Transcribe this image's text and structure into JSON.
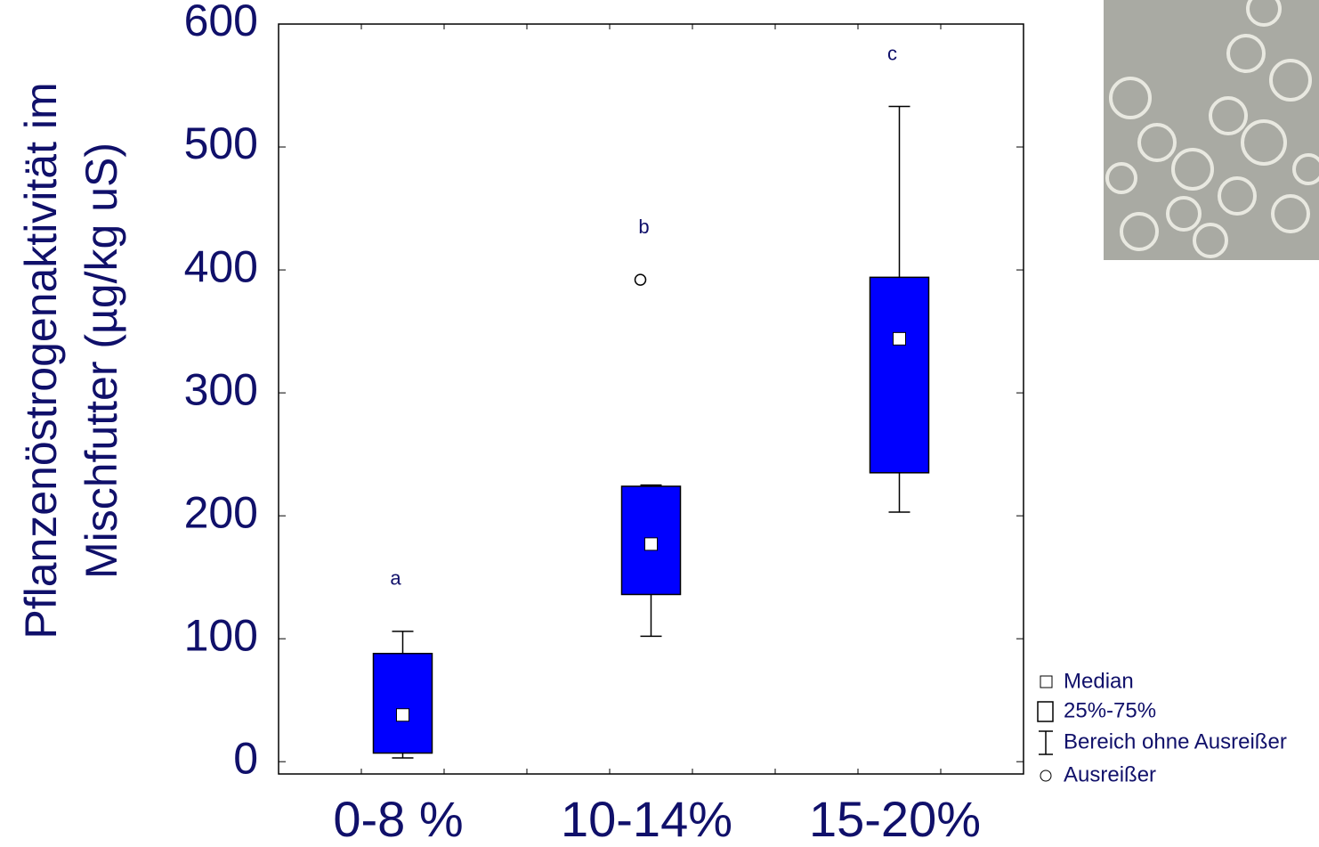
{
  "chart_data": {
    "type": "box",
    "y_label_lines": [
      "Pflanzenöstrogenaktivität im",
      "Mischfutter (µg/kg uS)"
    ],
    "categories": [
      "0-8 %",
      "10-14%",
      "15-20%"
    ],
    "boxes": [
      {
        "min": 3,
        "q1": 7,
        "median": 38,
        "q3": 88,
        "max": 106,
        "outliers": [],
        "letter": "a"
      },
      {
        "min": 102,
        "q1": 136,
        "median": 177,
        "q3": 224,
        "max": 225,
        "outliers": [
          392
        ],
        "letter": "b"
      },
      {
        "min": 203,
        "q1": 235,
        "median": 344,
        "q3": 394,
        "max": 533,
        "outliers": [],
        "letter": "c"
      }
    ],
    "color": "#0000ff",
    "ylim": [
      -10,
      600
    ],
    "yticks": [
      0,
      100,
      200,
      300,
      400,
      500,
      600
    ],
    "legend": [
      "Median",
      "25%-75%",
      "Bereich ohne Ausreißer",
      "Ausreißer"
    ]
  }
}
